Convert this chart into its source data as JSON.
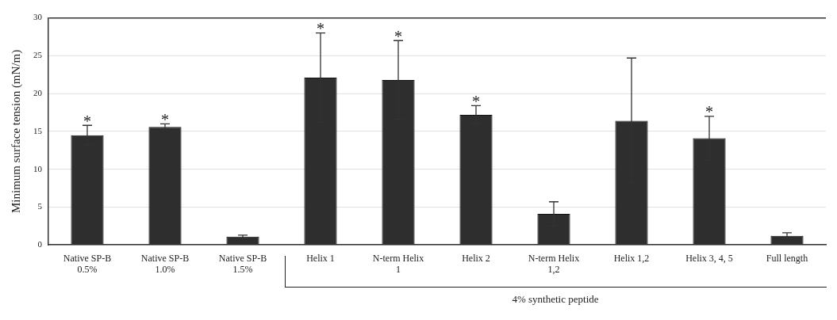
{
  "chart_data": {
    "type": "bar",
    "ylabel": "Minimum surface tension (mN/m)",
    "categories": [
      "Native SP-B\n0.5%",
      "Native SP-B\n1.0%",
      "Native SP-B\n1.5%",
      "Helix 1",
      "N-term Helix\n1",
      "Helix 2",
      "N-term Helix\n1,2",
      "Helix 1,2",
      "Helix 3, 4, 5",
      "Full length"
    ],
    "values": [
      14.5,
      15.6,
      1.1,
      22.1,
      21.8,
      17.2,
      4.1,
      16.4,
      14.1,
      1.2
    ],
    "errors": [
      1.3,
      0.4,
      0.2,
      5.9,
      5.2,
      1.2,
      1.6,
      8.3,
      2.9,
      0.4
    ],
    "value_labels": [
      "*",
      "*",
      null,
      "*",
      "*",
      "*",
      null,
      null,
      "*",
      null
    ],
    "color": "#2e2e2e",
    "ylim": [
      0,
      30
    ],
    "yticks": [
      0,
      5,
      10,
      15,
      20,
      25,
      30
    ],
    "grid": "y",
    "legend": false,
    "annotations": [
      "4% synthetic peptide"
    ]
  }
}
